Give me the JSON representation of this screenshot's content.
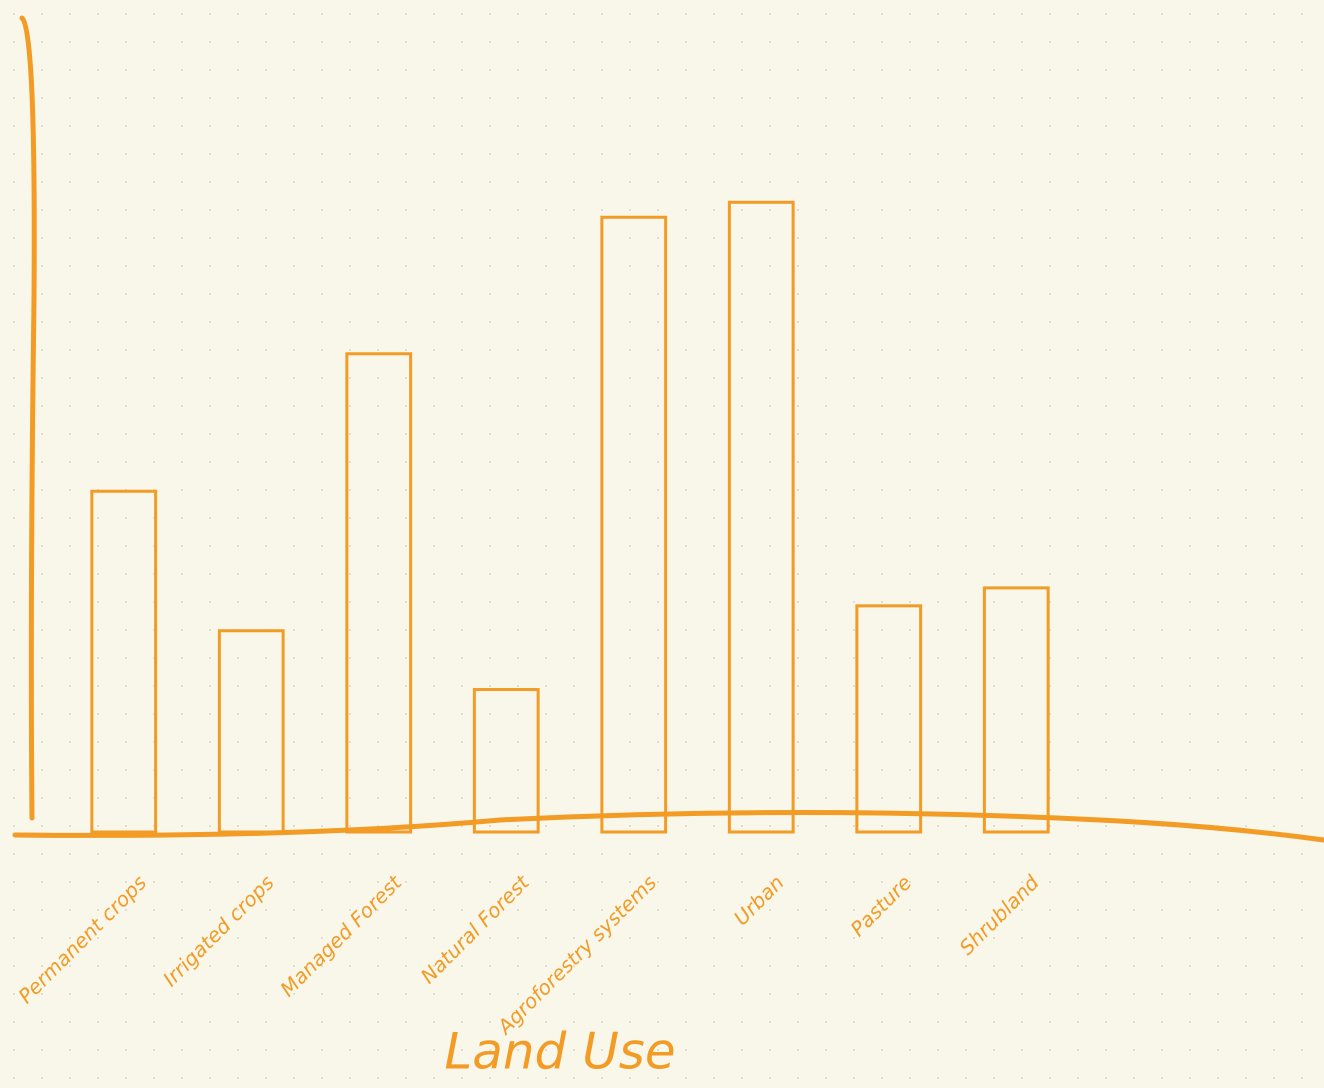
{
  "chart_data": {
    "type": "bar",
    "x_label": "Land Use",
    "categories": [
      "Permanent crops",
      "Irrigated crops",
      "Managed Forest",
      "Natural Forest",
      "Agroforestry systems",
      "Urban",
      "Pasture",
      "Shrubland"
    ],
    "values": [
      342,
      202,
      480,
      143,
      617,
      632,
      227,
      245
    ],
    "color": "#f29b25",
    "ylim": [
      0,
      820
    ]
  }
}
